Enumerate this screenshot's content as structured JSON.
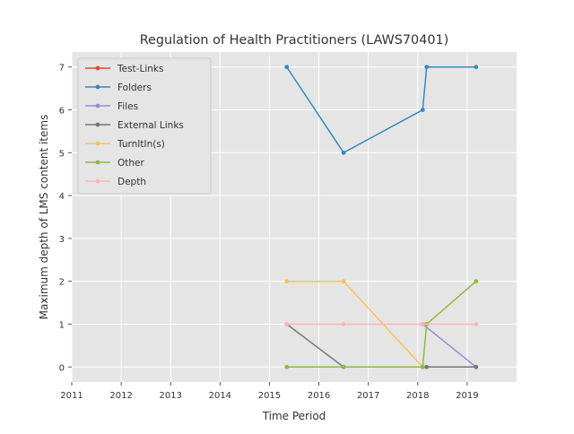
{
  "chart_data": {
    "type": "line",
    "title": "Regulation of Health Practitioners (LAWS70401)",
    "xlabel": "Time Period",
    "ylabel": "Maximum depth of LMS content items",
    "xlim": [
      2011.0,
      2020.0
    ],
    "ylim": [
      -0.35,
      7.35
    ],
    "x_ticks": [
      2011,
      2012,
      2013,
      2014,
      2015,
      2016,
      2017,
      2018,
      2019
    ],
    "x_tick_labels": [
      "2011",
      "2012",
      "2013",
      "2014",
      "2015",
      "2016",
      "2017",
      "2018",
      "2019"
    ],
    "y_ticks": [
      0,
      1,
      2,
      3,
      4,
      5,
      6,
      7
    ],
    "y_tick_labels": [
      "0",
      "1",
      "2",
      "3",
      "4",
      "5",
      "6",
      "7"
    ],
    "grid": true,
    "legend_position": "top-left",
    "series": [
      {
        "name": "Test-Links",
        "color": "#e24a33",
        "points": []
      },
      {
        "name": "Folders",
        "color": "#348abd",
        "points": [
          [
            2015.35,
            7
          ],
          [
            2016.5,
            5
          ],
          [
            2018.1,
            6
          ],
          [
            2018.18,
            7
          ],
          [
            2019.18,
            7
          ]
        ]
      },
      {
        "name": "Files",
        "color": "#988ed5",
        "points": [
          [
            2018.1,
            1
          ],
          [
            2019.18,
            0
          ]
        ]
      },
      {
        "name": "External Links",
        "color": "#777777",
        "points": [
          [
            2015.35,
            1
          ],
          [
            2016.5,
            0
          ],
          [
            2018.18,
            0
          ],
          [
            2019.18,
            0
          ]
        ]
      },
      {
        "name": "TurnItIn(s)",
        "color": "#fbc15e",
        "points": [
          [
            2015.35,
            2
          ],
          [
            2016.5,
            2
          ],
          [
            2018.1,
            0
          ]
        ]
      },
      {
        "name": "Other",
        "color": "#8eba42",
        "points": [
          [
            2015.35,
            0
          ],
          [
            2016.5,
            0
          ],
          [
            2018.1,
            0
          ],
          [
            2018.18,
            1
          ],
          [
            2019.18,
            2
          ]
        ]
      },
      {
        "name": "Depth",
        "color": "#ffb5b8",
        "points": [
          [
            2015.35,
            1
          ],
          [
            2016.5,
            1
          ],
          [
            2018.1,
            1
          ],
          [
            2019.18,
            1
          ]
        ]
      }
    ]
  }
}
